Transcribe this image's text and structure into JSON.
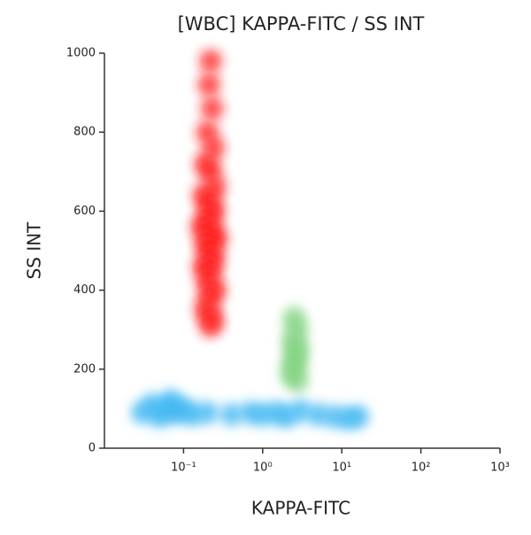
{
  "chart_data": {
    "type": "scatter",
    "title": "[WBC] KAPPA-FITC / SS INT",
    "x_label": "KAPPA-FITC",
    "y_label": "SS INT",
    "xscale": "log",
    "xlim": [
      0.01,
      1000
    ],
    "xticks": [
      {
        "value": 0.1,
        "label": "10⁻¹"
      },
      {
        "value": 1,
        "label": "10⁰"
      },
      {
        "value": 10,
        "label": "10¹"
      },
      {
        "value": 100,
        "label": "10²"
      },
      {
        "value": 1000,
        "label": "10³"
      }
    ],
    "ylim": [
      0,
      1000
    ],
    "yticks": [
      0,
      200,
      400,
      600,
      800,
      1000
    ],
    "series": [
      {
        "color": "#ff1a1a",
        "x": [
          0.22,
          0.21,
          0.23,
          0.2,
          0.24,
          0.19,
          0.22,
          0.25,
          0.18,
          0.21,
          0.24,
          0.2,
          0.17,
          0.23,
          0.26,
          0.19,
          0.21,
          0.24,
          0.18,
          0.22,
          0.2,
          0.25,
          0.21,
          0.19,
          0.23,
          0.22
        ],
        "values": [
          980,
          920,
          860,
          800,
          760,
          720,
          700,
          660,
          640,
          620,
          600,
          580,
          560,
          550,
          530,
          520,
          500,
          480,
          460,
          450,
          420,
          400,
          380,
          350,
          330,
          310
        ]
      },
      {
        "color": "#7fd27f",
        "x": [
          2.5,
          2.7,
          2.4,
          2.8,
          2.5,
          2.6,
          2.3,
          2.7
        ],
        "values": [
          330,
          300,
          270,
          250,
          230,
          210,
          190,
          170
        ]
      },
      {
        "color": "#3db6f2",
        "x": [
          0.03,
          0.04,
          0.05,
          0.06,
          0.07,
          0.08,
          0.1,
          0.13,
          0.2,
          0.4,
          0.7,
          1,
          1.5,
          2,
          3,
          5,
          8,
          12,
          16
        ],
        "values": [
          90,
          110,
          80,
          100,
          120,
          90,
          100,
          85,
          90,
          85,
          90,
          85,
          90,
          80,
          95,
          85,
          80,
          75,
          80
        ]
      }
    ]
  }
}
